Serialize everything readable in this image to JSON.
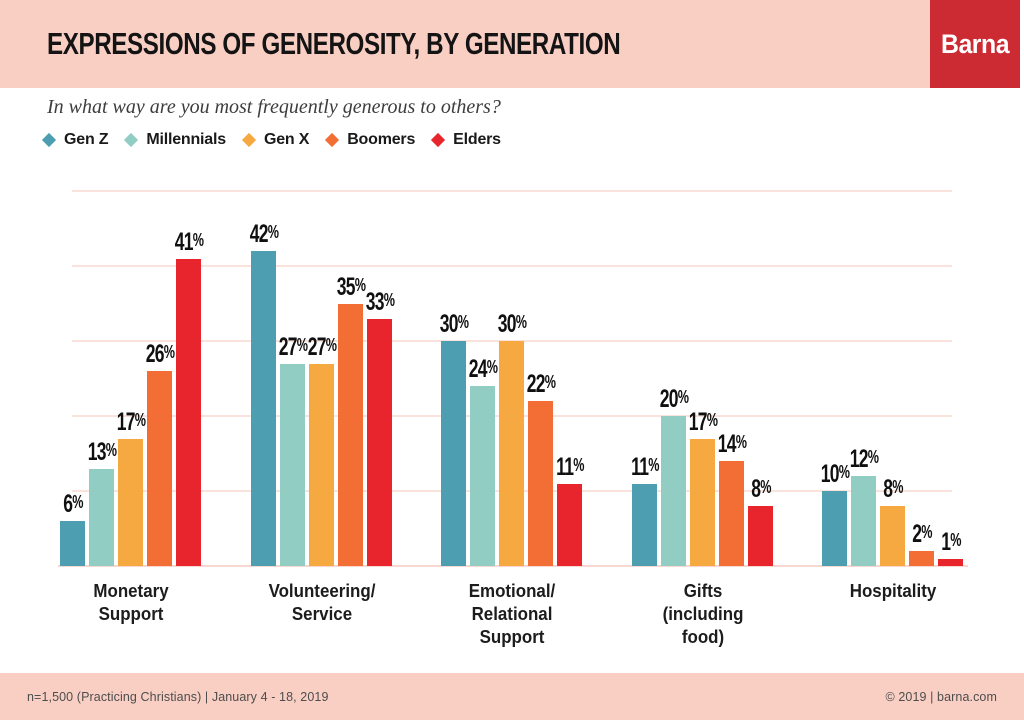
{
  "header": {
    "title": "EXPRESSIONS OF GENEROSITY, BY GENERATION",
    "logo_text": "Barna"
  },
  "subtitle": "In what way are you most frequently generous to others?",
  "legend": [
    {
      "label": "Gen Z",
      "color": "#4D9EB0"
    },
    {
      "label": "Millennials",
      "color": "#92CDC4"
    },
    {
      "label": "Gen X",
      "color": "#F5A940"
    },
    {
      "label": "Boomers",
      "color": "#F36E34"
    },
    {
      "label": "Elders",
      "color": "#E8252D"
    }
  ],
  "chart_data": {
    "type": "bar",
    "title": "Expressions of Generosity, by Generation",
    "categories": [
      "Monetary\nSupport",
      "Volunteering/\nService",
      "Emotional/\nRelational\nSupport",
      "Gifts\n(including\nfood)",
      "Hospitality"
    ],
    "series": [
      {
        "name": "Gen Z",
        "color": "#4D9EB0",
        "values": [
          6,
          42,
          30,
          11,
          10
        ]
      },
      {
        "name": "Millennials",
        "color": "#92CDC4",
        "values": [
          13,
          27,
          24,
          20,
          12
        ]
      },
      {
        "name": "Gen X",
        "color": "#F5A940",
        "values": [
          17,
          27,
          30,
          17,
          8
        ]
      },
      {
        "name": "Boomers",
        "color": "#F36E34",
        "values": [
          26,
          35,
          22,
          14,
          2
        ]
      },
      {
        "name": "Elders",
        "color": "#E8252D",
        "values": [
          41,
          33,
          11,
          8,
          1
        ]
      }
    ],
    "value_suffix": "%",
    "ylim": [
      0,
      50
    ],
    "gridlines": [
      10,
      20,
      30,
      40,
      50
    ],
    "grid_color": "#FAE3DC",
    "legend_position": "top"
  },
  "colors": {
    "band_pink": "#F9CFC4",
    "logo_red": "#CD2B34",
    "gridline": "#FAE3DC",
    "baseline": "#F6D8D0"
  },
  "footer": {
    "left": "n=1,500 (Practicing Christians)  |  January 4 - 18, 2019",
    "right": "© 2019 | barna.com"
  }
}
